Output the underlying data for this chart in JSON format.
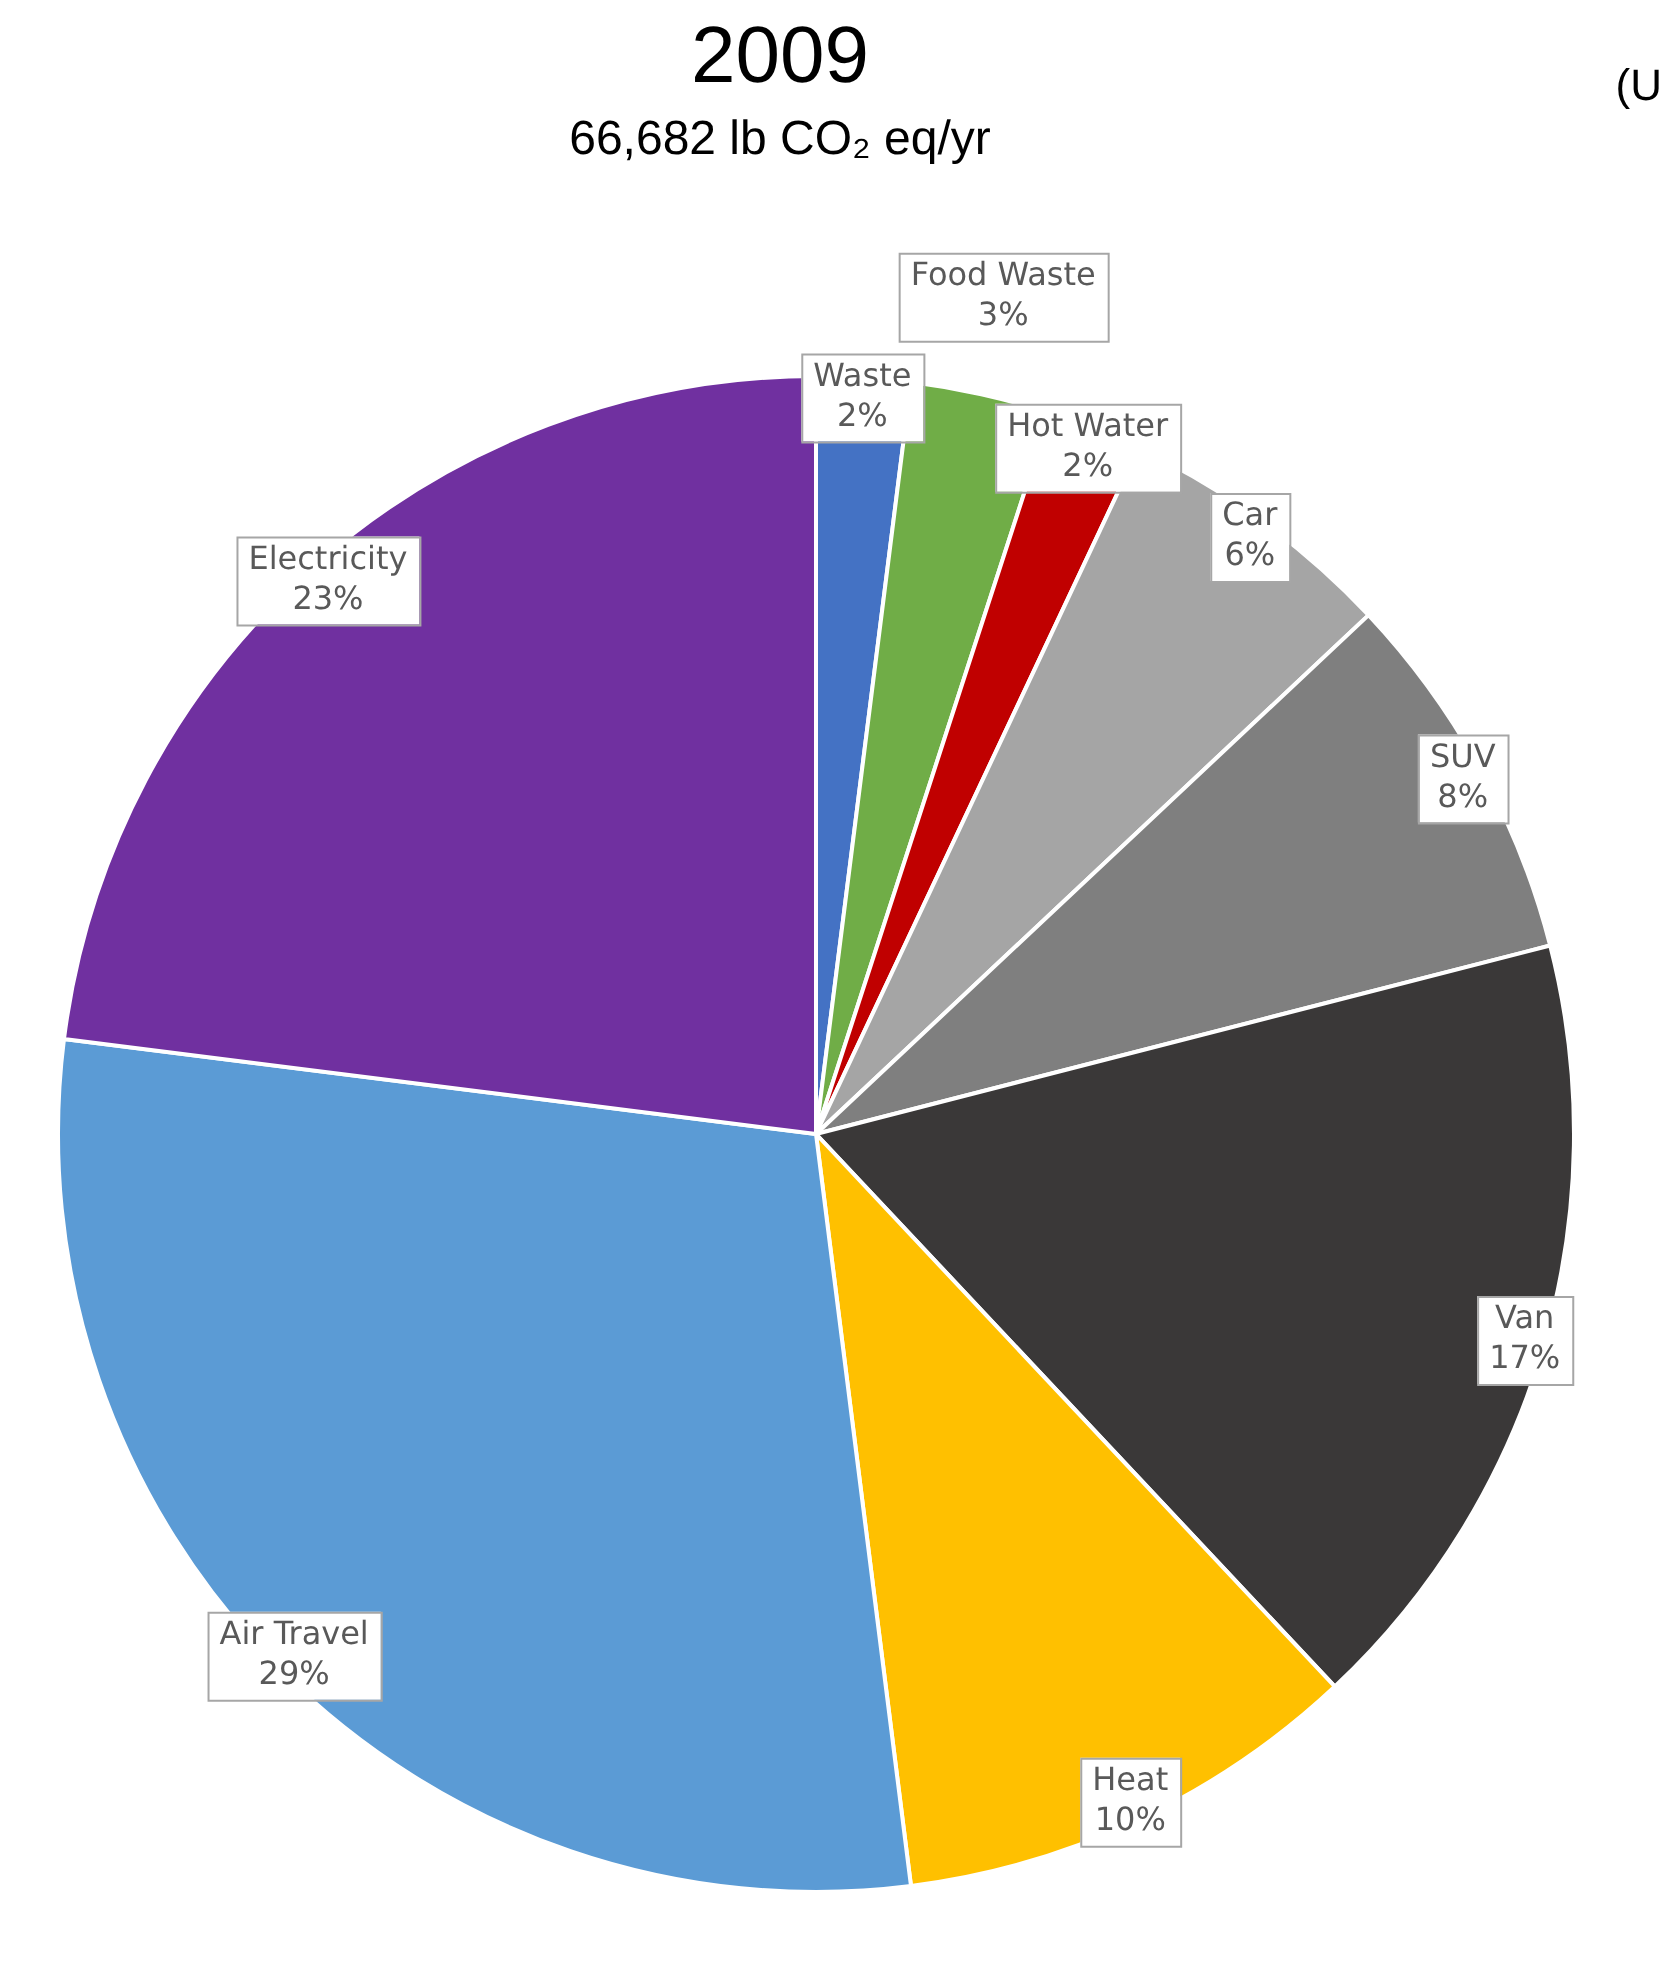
{
  "chart_data": {
    "type": "pie",
    "title": "2009",
    "subtitle": "66,682 lb CO₂ eq/yr",
    "annotations": [
      "(U"
    ],
    "categories": [
      "Waste",
      "Food Waste",
      "Hot Water",
      "Car",
      "SUV",
      "Van",
      "Heat",
      "Air Travel",
      "Electricity"
    ],
    "values": [
      2,
      3,
      2,
      6,
      8,
      17,
      10,
      29,
      23
    ],
    "colors": [
      "#4472c4",
      "#70ad47",
      "#c00000",
      "#a5a5a5",
      "#7f7f7f",
      "#3a3838",
      "#ffc000",
      "#5b9bd5",
      "#7030a0"
    ],
    "value_labels": [
      "2%",
      "3%",
      "2%",
      "6%",
      "8%",
      "17%",
      "10%",
      "29%",
      "23%"
    ],
    "legend": false
  }
}
